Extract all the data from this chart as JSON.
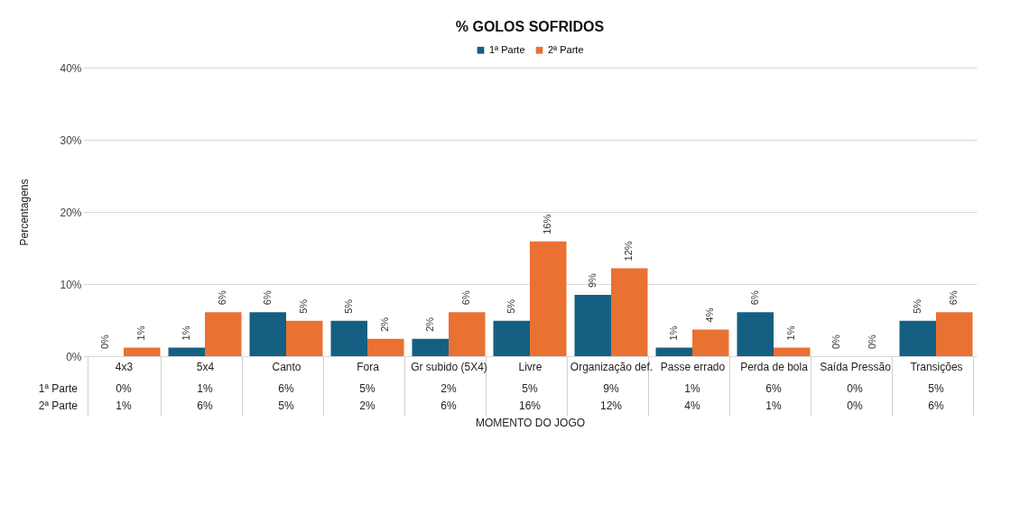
{
  "chart_data": {
    "type": "bar",
    "title": "% GOLOS SOFRIDOS",
    "xlabel": "MOMENTO DO JOGO",
    "ylabel": "Percentagens",
    "categories": [
      "4x3",
      "5x4",
      "Canto",
      "Fora",
      "Gr subido (5X4)",
      "Livre",
      "Organização def.",
      "Passe errado",
      "Perda de bola",
      "Saída Pressão",
      "Transições"
    ],
    "series": [
      {
        "name": "1ª Parte",
        "color": "#156082",
        "values": [
          0,
          1.2,
          6.1,
          4.9,
          2.4,
          4.9,
          8.5,
          1.2,
          6.1,
          0,
          4.9
        ],
        "value_labels": [
          "0%",
          "1%",
          "6%",
          "5%",
          "2%",
          "5%",
          "9%",
          "1%",
          "6%",
          "0%",
          "5%"
        ]
      },
      {
        "name": "2ª Parte",
        "color": "#e97132",
        "values": [
          1.2,
          6.1,
          4.9,
          2.4,
          6.1,
          15.9,
          12.2,
          3.7,
          1.2,
          0,
          6.1
        ],
        "value_labels": [
          "1%",
          "6%",
          "5%",
          "2%",
          "6%",
          "16%",
          "12%",
          "4%",
          "1%",
          "0%",
          "6%"
        ]
      }
    ],
    "ylim": [
      0,
      40
    ],
    "yticks": [
      {
        "value": 0,
        "label": "0%"
      },
      {
        "value": 10,
        "label": "10%"
      },
      {
        "value": 20,
        "label": "20%"
      },
      {
        "value": 30,
        "label": "30%"
      },
      {
        "value": 40,
        "label": "40%"
      }
    ],
    "grid": "y",
    "legend": "top"
  }
}
